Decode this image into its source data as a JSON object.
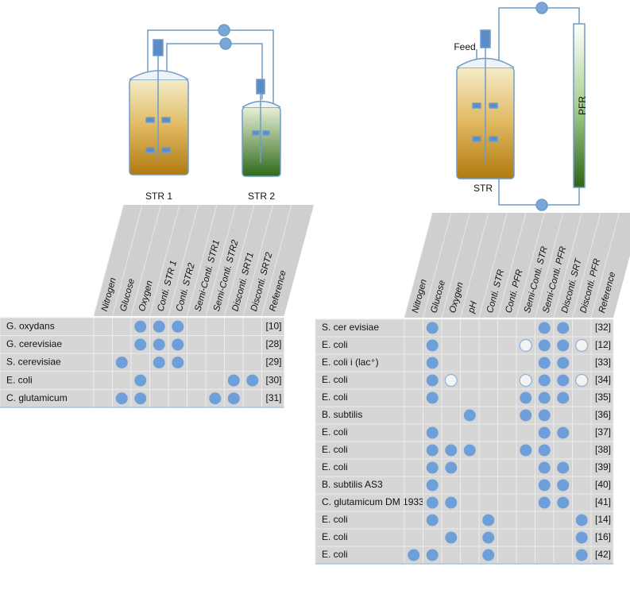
{
  "left": {
    "diagram": {
      "labels": [
        "STR 1",
        "STR 2"
      ]
    },
    "table": {
      "columns": [
        "Nitrogen",
        "Glucose",
        "Oxygen",
        "Conti. STR 1",
        "Conti. STR2",
        "Semi-Conti. STR1",
        "Semi-Conti. STR2",
        "Disconti. SRT1",
        "Disconti. SRT2",
        "Reference"
      ],
      "rows": [
        {
          "name": "G. oxydans",
          "cells": [
            null,
            null,
            1,
            1,
            1,
            null,
            null,
            null,
            null
          ],
          "reference": "[10]"
        },
        {
          "name": "G. cerevisiae",
          "cells": [
            null,
            null,
            1,
            1,
            1,
            null,
            null,
            null,
            null
          ],
          "reference": "[28]"
        },
        {
          "name": "S. cerevisiae",
          "cells": [
            null,
            1,
            null,
            1,
            1,
            null,
            null,
            null,
            null
          ],
          "reference": "[29]"
        },
        {
          "name": "E. coli",
          "cells": [
            null,
            null,
            1,
            null,
            null,
            null,
            null,
            1,
            1
          ],
          "reference": "[30]"
        },
        {
          "name": "C. glutamicum",
          "cells": [
            null,
            1,
            1,
            null,
            null,
            null,
            1,
            1,
            null
          ],
          "reference": "[31]"
        }
      ]
    }
  },
  "right": {
    "diagram": {
      "labels": [
        "Feed",
        "STR",
        "PFR"
      ]
    },
    "table": {
      "columns": [
        "Nitrogen",
        "Glucose",
        "Oxygen",
        "pH",
        "Conti. STR",
        "Conti. PFR",
        "Semi-Conti. STR",
        "Semi-Conti. PFR",
        "Disconti. SRT",
        "Disconti. PFR",
        "Reference"
      ],
      "rows": [
        {
          "name": "S. cer evisiae",
          "cells": [
            null,
            1,
            null,
            null,
            null,
            null,
            null,
            1,
            1,
            null
          ],
          "reference": "[32]"
        },
        {
          "name": "E. coli",
          "cells": [
            null,
            1,
            null,
            null,
            null,
            null,
            0,
            1,
            1,
            0
          ],
          "reference": "[12]"
        },
        {
          "name": "E. coli i (lac⁺)",
          "cells": [
            null,
            1,
            null,
            null,
            null,
            null,
            null,
            1,
            1,
            null
          ],
          "reference": "[33]"
        },
        {
          "name": "E. coli",
          "cells": [
            null,
            1,
            0,
            null,
            null,
            null,
            0,
            1,
            1,
            0
          ],
          "reference": "[34]"
        },
        {
          "name": "E. coli",
          "cells": [
            null,
            1,
            null,
            null,
            null,
            null,
            1,
            1,
            1,
            null
          ],
          "reference": "[35]"
        },
        {
          "name": "B. subtilis",
          "cells": [
            null,
            null,
            null,
            1,
            null,
            null,
            1,
            1,
            null,
            null
          ],
          "reference": "[36]"
        },
        {
          "name": "E. coli",
          "cells": [
            null,
            1,
            null,
            null,
            null,
            null,
            null,
            1,
            1,
            null
          ],
          "reference": "[37]"
        },
        {
          "name": "E. coli",
          "cells": [
            null,
            1,
            1,
            1,
            null,
            null,
            1,
            1,
            null,
            null
          ],
          "reference": "[38]"
        },
        {
          "name": "E. coli",
          "cells": [
            null,
            1,
            1,
            null,
            null,
            null,
            null,
            1,
            1,
            null
          ],
          "reference": "[39]"
        },
        {
          "name": "B. subtilis AS3",
          "cells": [
            null,
            1,
            null,
            null,
            null,
            null,
            null,
            1,
            1,
            null
          ],
          "reference": "[40]"
        },
        {
          "name": "C. glutamicum DM 1933",
          "cells": [
            null,
            1,
            1,
            null,
            null,
            null,
            null,
            1,
            1,
            null
          ],
          "reference": "[41]"
        },
        {
          "name": "E. coli",
          "cells": [
            null,
            1,
            null,
            null,
            1,
            null,
            null,
            null,
            null,
            1
          ],
          "reference": "[14]"
        },
        {
          "name": "E. coli",
          "cells": [
            null,
            null,
            1,
            null,
            1,
            null,
            null,
            null,
            null,
            1
          ],
          "reference": "[16]"
        },
        {
          "name": "E. coli",
          "cells": [
            1,
            1,
            null,
            null,
            1,
            null,
            null,
            null,
            null,
            1
          ],
          "reference": "[42]"
        }
      ]
    }
  }
}
